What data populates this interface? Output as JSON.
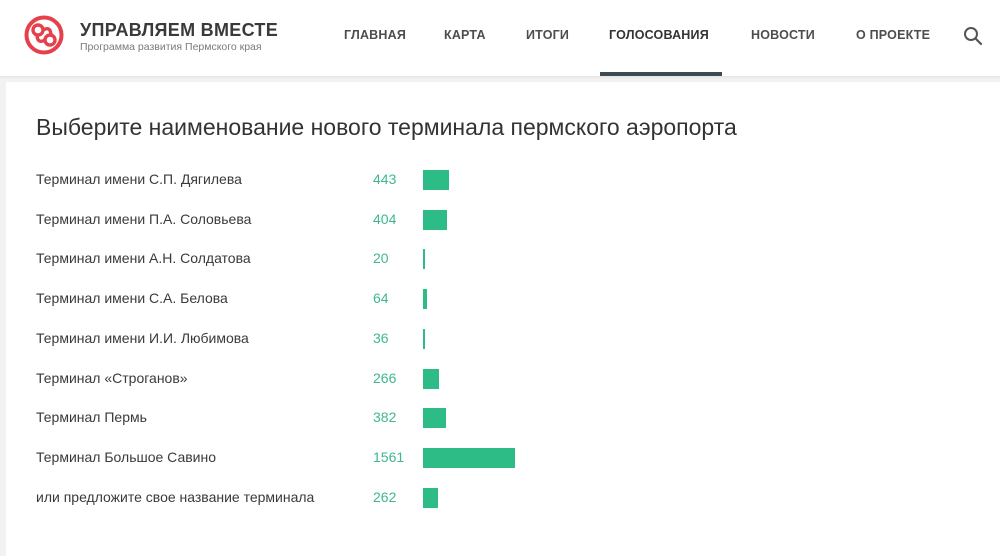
{
  "header": {
    "brand_title": "УПРАВЛЯЕМ ВМЕСТЕ",
    "brand_subtitle": "Программа развития Пермского края",
    "logo_color": "#e5404b",
    "nav": [
      {
        "label": "ГЛАВНАЯ",
        "active": false
      },
      {
        "label": "КАРТА",
        "active": false
      },
      {
        "label": "ИТОГИ",
        "active": false
      },
      {
        "label": "ГОЛОСОВАНИЯ",
        "active": true
      },
      {
        "label": "НОВОСТИ",
        "active": false
      },
      {
        "label": "О ПРОЕКТЕ",
        "active": false
      }
    ],
    "search_icon": "search-icon"
  },
  "poll": {
    "title": "Выберите наименование нового терминала пермского аэропорта",
    "bar_color": "#2dbb86",
    "count_color": "#3fb88d",
    "options": [
      {
        "label": "Терминал имени С.П. Дягилева",
        "votes": 443
      },
      {
        "label": "Терминал имени П.А. Соловьева",
        "votes": 404
      },
      {
        "label": "Терминал имени А.Н. Солдатова",
        "votes": 20
      },
      {
        "label": "Терминал имени С.А. Белова",
        "votes": 64
      },
      {
        "label": "Терминал имени И.И. Любимова",
        "votes": 36
      },
      {
        "label": "Терминал «Строганов»",
        "votes": 266
      },
      {
        "label": "Терминал Пермь",
        "votes": 382
      },
      {
        "label": "Терминал Большое Савино",
        "votes": 1561
      },
      {
        "label": "или предложите свое название терминала",
        "votes": 262
      }
    ]
  }
}
